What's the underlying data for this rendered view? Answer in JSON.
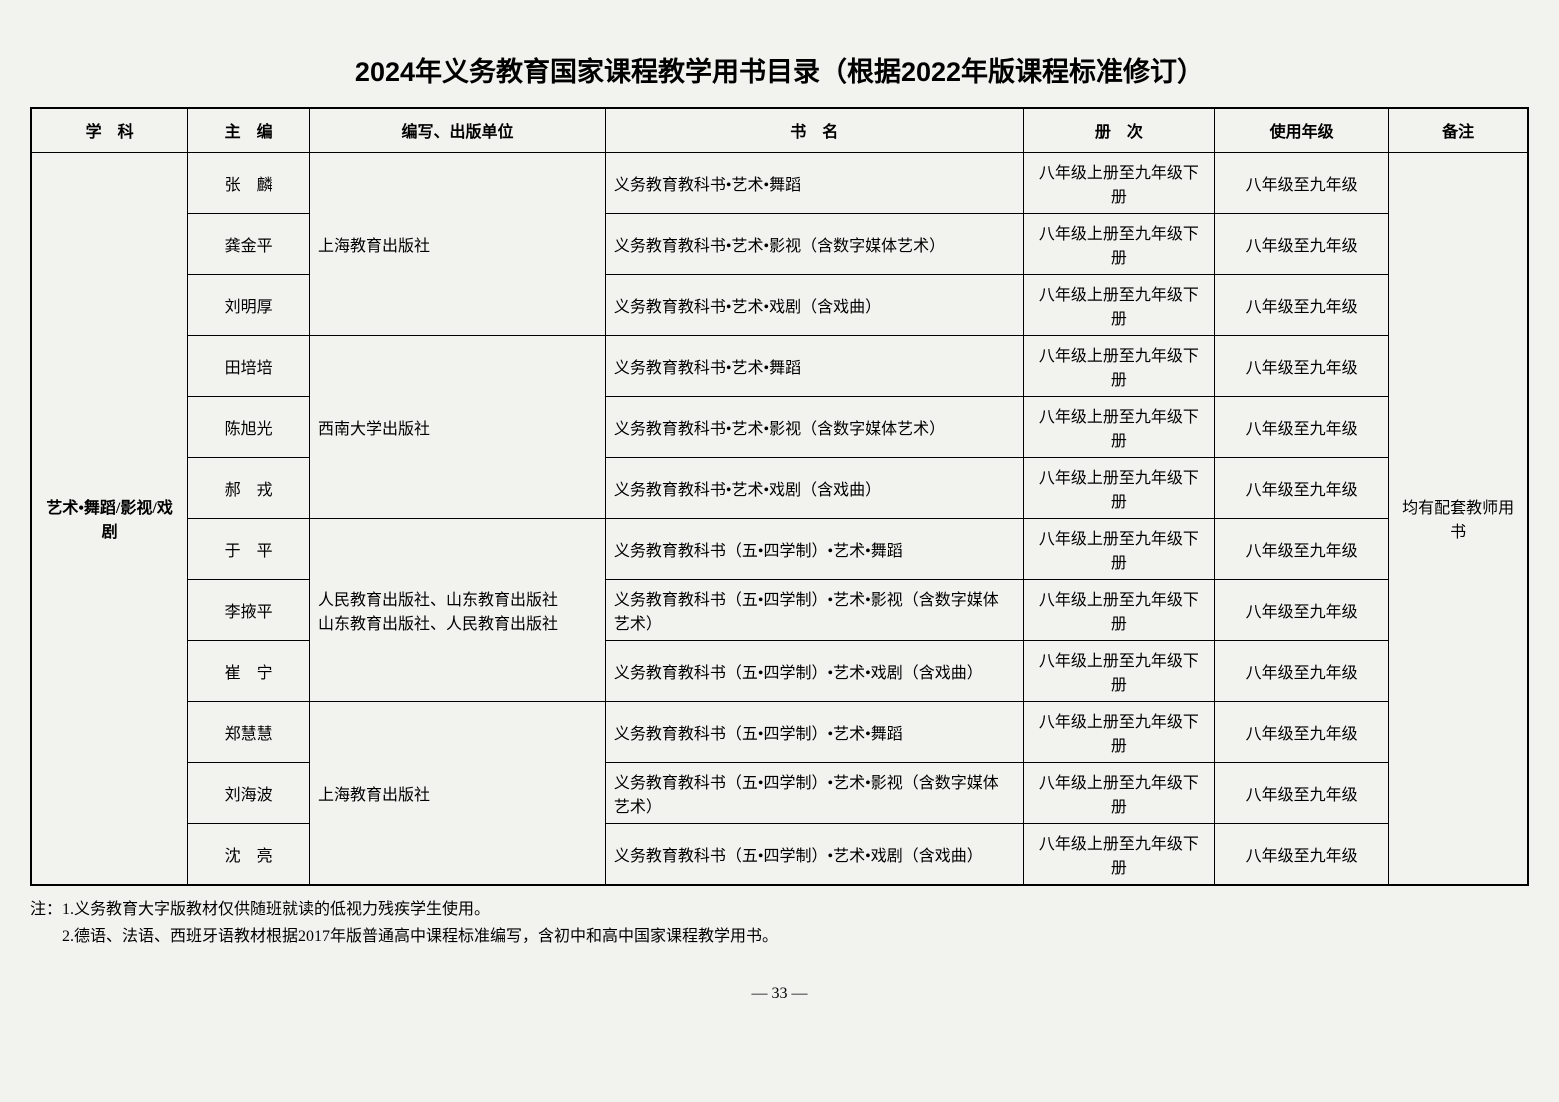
{
  "page": {
    "title": "2024年义务教育国家课程教学用书目录（根据2022年版课程标准修订）",
    "pageNumber": "— 33 —"
  },
  "table": {
    "headers": {
      "subject": "学　科",
      "editor": "主　编",
      "publisher": "编写、出版单位",
      "bookname": "书　名",
      "volume": "册　次",
      "grade": "使用年级",
      "note": "备注"
    },
    "subject": "艺术•舞蹈/影视/戏剧",
    "note": "均有配套教师用书",
    "groups": [
      {
        "publisher": "上海教育出版社",
        "rows": [
          {
            "editor": "张　麟",
            "bookname": "义务教育教科书•艺术•舞蹈",
            "volume": "八年级上册至九年级下册",
            "grade": "八年级至九年级"
          },
          {
            "editor": "龚金平",
            "bookname": "义务教育教科书•艺术•影视（含数字媒体艺术）",
            "volume": "八年级上册至九年级下册",
            "grade": "八年级至九年级"
          },
          {
            "editor": "刘明厚",
            "bookname": "义务教育教科书•艺术•戏剧（含戏曲）",
            "volume": "八年级上册至九年级下册",
            "grade": "八年级至九年级"
          }
        ]
      },
      {
        "publisher": "西南大学出版社",
        "rows": [
          {
            "editor": "田培培",
            "bookname": "义务教育教科书•艺术•舞蹈",
            "volume": "八年级上册至九年级下册",
            "grade": "八年级至九年级"
          },
          {
            "editor": "陈旭光",
            "bookname": "义务教育教科书•艺术•影视（含数字媒体艺术）",
            "volume": "八年级上册至九年级下册",
            "grade": "八年级至九年级"
          },
          {
            "editor": "郝　戎",
            "bookname": "义务教育教科书•艺术•戏剧（含戏曲）",
            "volume": "八年级上册至九年级下册",
            "grade": "八年级至九年级"
          }
        ]
      },
      {
        "publisher": "人民教育出版社、山东教育出版社\n山东教育出版社、人民教育出版社",
        "rows": [
          {
            "editor": "于　平",
            "bookname": "义务教育教科书（五•四学制）•艺术•舞蹈",
            "volume": "八年级上册至九年级下册",
            "grade": "八年级至九年级"
          },
          {
            "editor": "李掖平",
            "bookname": "义务教育教科书（五•四学制）•艺术•影视（含数字媒体艺术）",
            "volume": "八年级上册至九年级下册",
            "grade": "八年级至九年级"
          },
          {
            "editor": "崔　宁",
            "bookname": "义务教育教科书（五•四学制）•艺术•戏剧（含戏曲）",
            "volume": "八年级上册至九年级下册",
            "grade": "八年级至九年级"
          }
        ]
      },
      {
        "publisher": "上海教育出版社",
        "rows": [
          {
            "editor": "郑慧慧",
            "bookname": "义务教育教科书（五•四学制）•艺术•舞蹈",
            "volume": "八年级上册至九年级下册",
            "grade": "八年级至九年级"
          },
          {
            "editor": "刘海波",
            "bookname": "义务教育教科书（五•四学制）•艺术•影视（含数字媒体艺术）",
            "volume": "八年级上册至九年级下册",
            "grade": "八年级至九年级"
          },
          {
            "editor": "沈　亮",
            "bookname": "义务教育教科书（五•四学制）•艺术•戏剧（含戏曲）",
            "volume": "八年级上册至九年级下册",
            "grade": "八年级至九年级"
          }
        ]
      }
    ]
  },
  "notes": {
    "line1": "注：1.义务教育大字版教材仅供随班就读的低视力残疾学生使用。",
    "line2": "　　2.德语、法语、西班牙语教材根据2017年版普通高中课程标准编写，含初中和高中国家课程教学用书。"
  },
  "colors": {
    "background": "#f2f2ef",
    "text": "#000000",
    "border": "#000000"
  },
  "typography": {
    "title_fontsize": 27,
    "body_fontsize": 16,
    "title_font": "SimHei",
    "body_font": "SimSun"
  }
}
